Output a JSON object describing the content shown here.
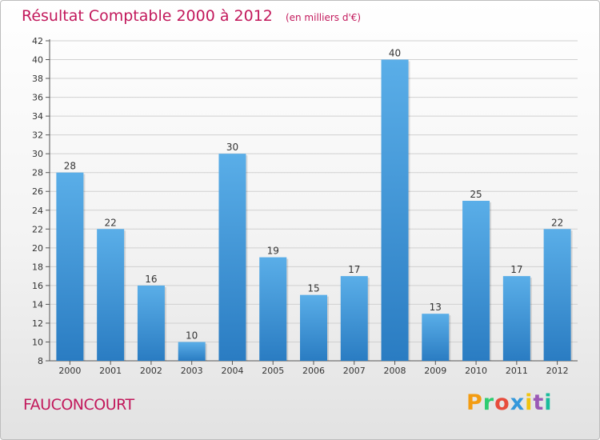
{
  "header": {
    "title": "Résultat Comptable 2000 à 2012",
    "subtitle": "(en milliers d'€)"
  },
  "footer": {
    "commune": "FAUCONCOURT",
    "logo": "Proxiti",
    "logo_colors": [
      "#f39c12",
      "#2ecc71",
      "#e74c3c",
      "#3498db",
      "#f1c40f",
      "#9b59b6",
      "#1abc9c"
    ]
  },
  "colors": {
    "bar_light": "#5aaee8",
    "bar_dark": "#2a7cc2",
    "grid": "#d0d0d0",
    "axis": "#555555",
    "title": "#c2185b"
  },
  "chart_data": {
    "type": "bar",
    "title": "Résultat Comptable 2000 à 2012",
    "ylabel": "(en milliers d'€)",
    "xlabel": "",
    "categories": [
      "2000",
      "2001",
      "2002",
      "2003",
      "2004",
      "2005",
      "2006",
      "2007",
      "2008",
      "2009",
      "2010",
      "2011",
      "2012"
    ],
    "values": [
      28,
      22,
      16,
      10,
      30,
      19,
      15,
      17,
      40,
      13,
      25,
      17,
      22
    ],
    "ylim": [
      8,
      42
    ],
    "yticks": [
      8,
      10,
      12,
      14,
      16,
      18,
      20,
      22,
      24,
      26,
      28,
      30,
      32,
      34,
      36,
      38,
      40,
      42
    ],
    "grid": true
  }
}
